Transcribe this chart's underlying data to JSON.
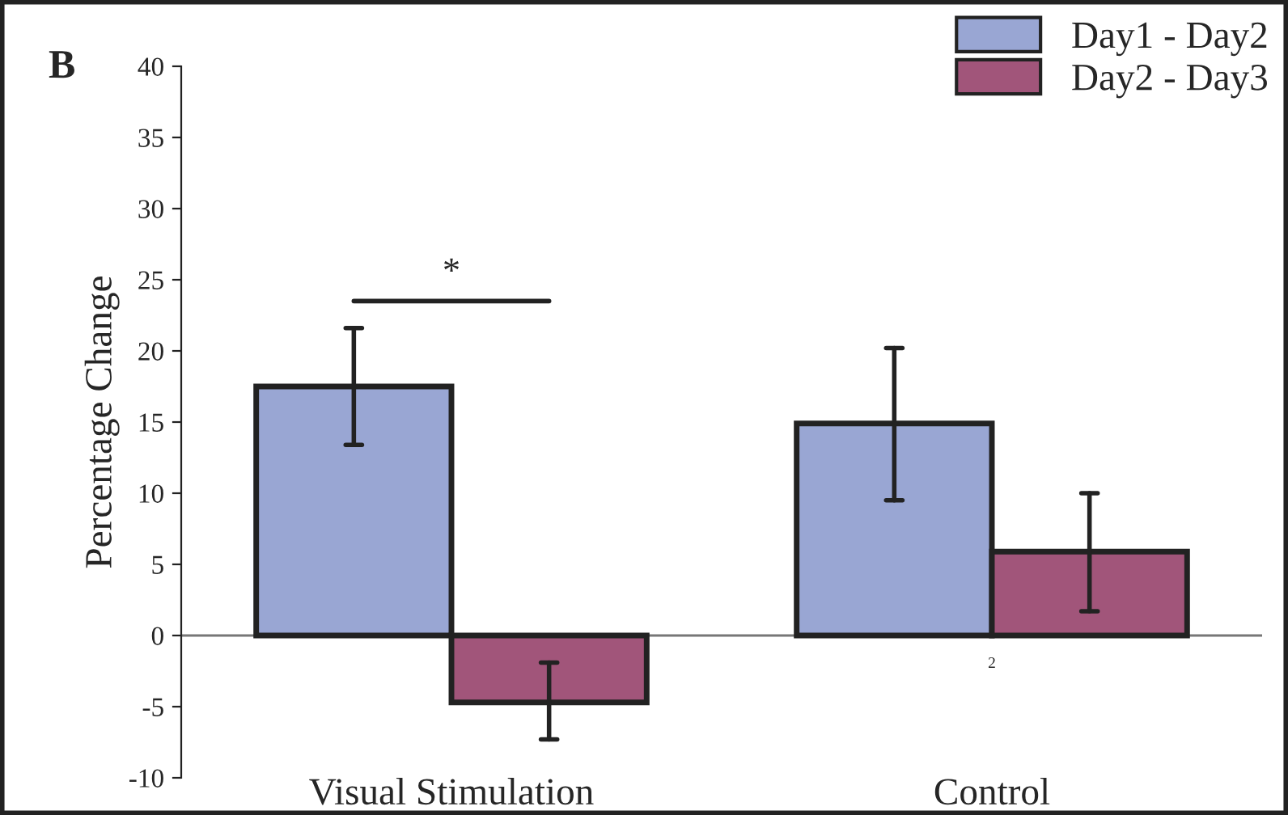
{
  "chart_data": {
    "type": "bar",
    "ylabel": "Percentage Change",
    "categories": [
      "Visual Stimulation",
      "Control"
    ],
    "series": [
      {
        "name": "Day1 - Day2",
        "color": "#99a6d3",
        "values": [
          17.5,
          14.9
        ],
        "errors": [
          [
            13.4,
            21.6
          ],
          [
            9.5,
            20.2
          ]
        ]
      },
      {
        "name": "Day2 - Day3",
        "color": "#a1557a",
        "values": [
          -4.7,
          5.9
        ],
        "errors": [
          [
            -7.3,
            -1.9
          ],
          [
            1.7,
            10.0
          ]
        ]
      }
    ],
    "ylim": [
      -10,
      40
    ],
    "yticks": [
      -10,
      -5,
      0,
      5,
      10,
      15,
      20,
      25,
      30,
      35,
      40
    ],
    "ref_lines": [
      {
        "axis": "y",
        "value": 0,
        "color": "#777777"
      }
    ],
    "annotations": [
      "*",
      "2",
      "B"
    ],
    "legend": "top right",
    "grid": false
  }
}
